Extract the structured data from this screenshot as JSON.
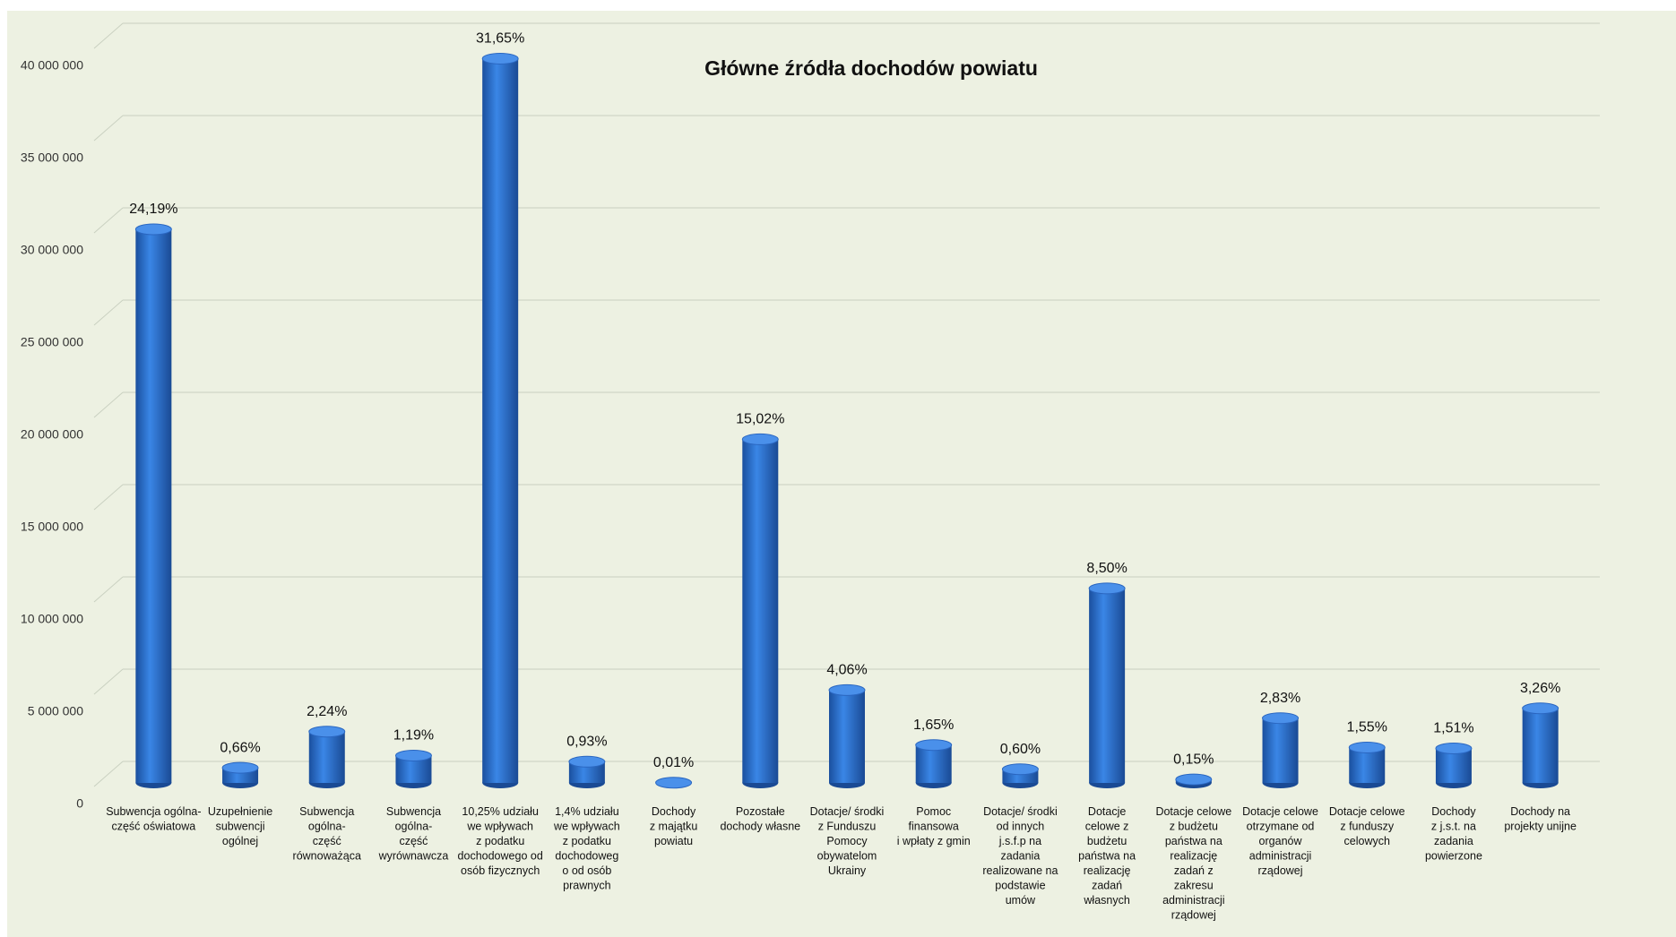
{
  "chart_data": {
    "type": "bar",
    "title": "Główne źródła dochodów powiatu",
    "categories": [
      "Subwencja ogólna-\nczęść oświatowa",
      "Uzupełnienie\nsubwencji\nogólnej",
      "Subwencja\nogólna-\nczęść\nrównoważąca",
      "Subwencja\nogólna-\nczęść\nwyrównawcza",
      "10,25% udziału\nwe wpływach\nz podatku\ndochodowego od\nosób fizycznych",
      "1,4% udziału\nwe wpływach\nz podatku\ndochodoweg\no od osób\nprawnych",
      "Dochody\nz majątku\npowiatu",
      "Pozostałe\ndochody własne",
      "Dotacje/ środki\nz Funduszu\nPomocy\nobywatelom\nUkrainy",
      "Pomoc\nfinansowa\ni wpłaty  z gmin",
      "Dotacje/ środki\nod innych\nj.s.f.p na\nzadania\nrealizowane na\npodstawie\numów",
      "Dotacje\ncelowe z\nbudżetu\npaństwa na\nrealizację\nzadań\nwłasnych",
      "Dotacje celowe\nz budżetu\npaństwa na\nrealizację\nzadań z\nzakresu\nadministracji\nrządowej",
      "Dotacje celowe\notrzymane od\norganów\nadministracji\nrządowej",
      "Dotacje celowe\nz funduszy\ncelowych",
      "Dochody\nz j.s.t. na\nzadania\npowierzone",
      "Dochody na\nprojekty unijne"
    ],
    "values": [
      30000000,
      820000,
      2780000,
      1480000,
      39250000,
      1150000,
      12000,
      18620000,
      5030000,
      2050000,
      740000,
      10540000,
      190000,
      3510000,
      1920000,
      1870000,
      4040000
    ],
    "share_labels": [
      "24,19%",
      "0,66%",
      "2,24%",
      "1,19%",
      "31,65%",
      "0,93%",
      "0,01%",
      "15,02%",
      "4,06%",
      "1,65%",
      "0,60%",
      "8,50%",
      "0,15%",
      "2,83%",
      "1,55%",
      "1,51%",
      "3,26%"
    ],
    "color": "#2e6fd0",
    "ylim": [
      0,
      40000000
    ],
    "yticks": [
      0,
      {
        "value": 5000000,
        "label": "5 000 000"
      },
      {
        "value": 10000000,
        "label": "10 000 000"
      },
      {
        "value": 15000000,
        "label": "15 000 000"
      },
      {
        "value": 20000000,
        "label": "20 000 000"
      },
      {
        "value": 25000000,
        "label": "25 000 000"
      },
      {
        "value": 30000000,
        "label": "30 000 000"
      },
      {
        "value": 35000000,
        "label": "35 000 000"
      },
      {
        "value": 40000000,
        "label": "40 000 000"
      }
    ],
    "grid": true
  }
}
